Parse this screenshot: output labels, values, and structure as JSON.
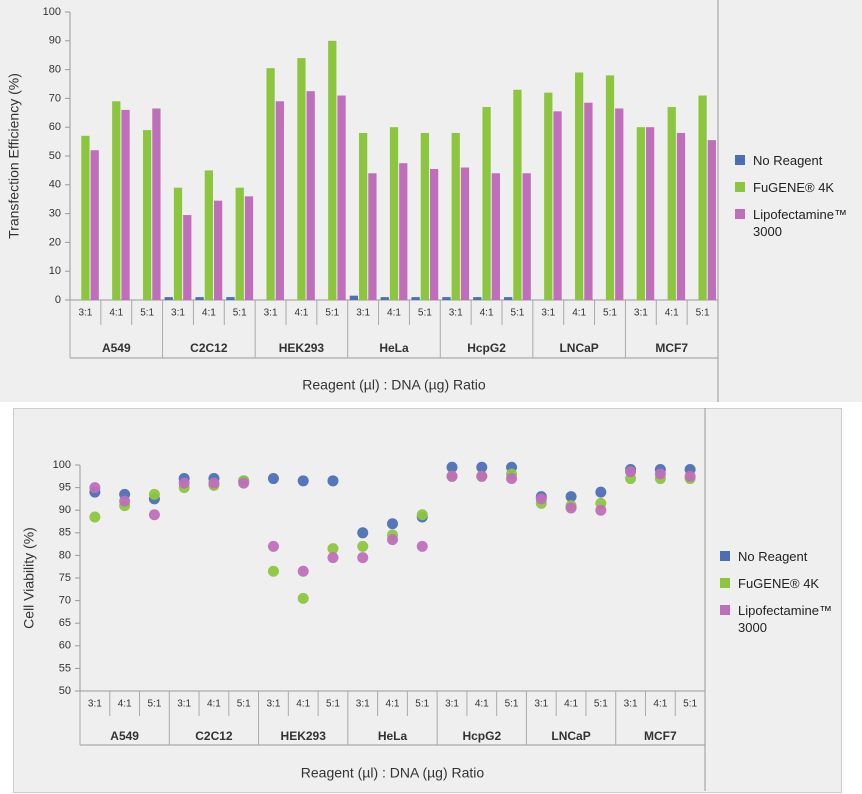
{
  "chart_data": [
    {
      "type": "bar",
      "x_label": "Reagent (µl) : DNA (µg) Ratio",
      "y_label": "Transfection Efficiency (%)",
      "categories": [
        "3:1",
        "4:1",
        "5:1",
        "3:1",
        "4:1",
        "5:1",
        "3:1",
        "4:1",
        "5:1",
        "3:1",
        "4:1",
        "5:1",
        "3:1",
        "4:1",
        "5:1",
        "3:1",
        "4:1",
        "5:1",
        "3:1",
        "4:1",
        "5:1"
      ],
      "category_groups": [
        "A549",
        "C2C12",
        "HEK293",
        "HeLa",
        "HcpG2",
        "LNCaP",
        "MCF7"
      ],
      "series": [
        {
          "name": "No Reagent",
          "color": "#4c6fb4",
          "values": [
            0,
            0,
            0,
            1,
            1,
            1,
            0,
            0,
            0,
            1.5,
            1,
            1,
            1,
            1,
            1,
            0,
            0,
            0,
            0,
            0,
            0
          ]
        },
        {
          "name": "FuGENE® 4K",
          "color": "#8cc63f",
          "values": [
            57,
            69,
            59,
            39,
            45,
            39,
            80.5,
            84,
            90,
            58,
            60,
            58,
            58,
            67,
            73,
            72,
            79,
            78,
            60,
            67,
            71
          ]
        },
        {
          "name": "Lipofectamine™ 3000",
          "color": "#bf6fba",
          "values": [
            52,
            66,
            66.5,
            29.5,
            34.5,
            36,
            69,
            72.5,
            71,
            44,
            47.5,
            45.5,
            46,
            44,
            44,
            65.5,
            68.5,
            66.5,
            60,
            58,
            55.5
          ]
        }
      ],
      "ylim": [
        0,
        100
      ],
      "yticks": [
        0,
        10,
        20,
        30,
        40,
        50,
        60,
        70,
        80,
        90,
        100
      ],
      "grid": false
    },
    {
      "type": "scatter",
      "x_label": "Reagent (µl) : DNA (µg) Ratio",
      "y_label": "Cell Viability (%)",
      "categories": [
        "3:1",
        "4:1",
        "5:1",
        "3:1",
        "4:1",
        "5:1",
        "3:1",
        "4:1",
        "5:1",
        "3:1",
        "4:1",
        "5:1",
        "3:1",
        "4:1",
        "5:1",
        "3:1",
        "4:1",
        "5:1",
        "3:1",
        "4:1",
        "5:1"
      ],
      "category_groups": [
        "A549",
        "C2C12",
        "HEK293",
        "HeLa",
        "HcpG2",
        "LNCaP",
        "MCF7"
      ],
      "series": [
        {
          "name": "No Reagent",
          "color": "#4c6fb4",
          "values": [
            94,
            93.5,
            92.5,
            97,
            97,
            96.5,
            97,
            96.5,
            96.5,
            85,
            87,
            88.5,
            99.5,
            99.5,
            99.5,
            93,
            93,
            94,
            99,
            99,
            99
          ]
        },
        {
          "name": "FuGENE® 4K",
          "color": "#8cc63f",
          "values": [
            88.5,
            91,
            93.5,
            95,
            95.5,
            96.5,
            76.5,
            70.5,
            81.5,
            82,
            84.5,
            89,
            97.5,
            97.5,
            98,
            91.5,
            91,
            91.5,
            97,
            97,
            97
          ]
        },
        {
          "name": "Lipofectamine™ 3000",
          "color": "#bf6fba",
          "values": [
            95,
            92,
            89,
            96,
            96,
            96,
            82,
            76.5,
            79.5,
            79.5,
            83.5,
            82,
            97.5,
            97.5,
            97,
            92.5,
            90.5,
            90,
            98.5,
            98,
            97.5
          ]
        }
      ],
      "ylim": [
        50,
        100
      ],
      "yticks": [
        50,
        55,
        60,
        65,
        70,
        75,
        80,
        85,
        90,
        95,
        100
      ],
      "grid": false
    }
  ]
}
